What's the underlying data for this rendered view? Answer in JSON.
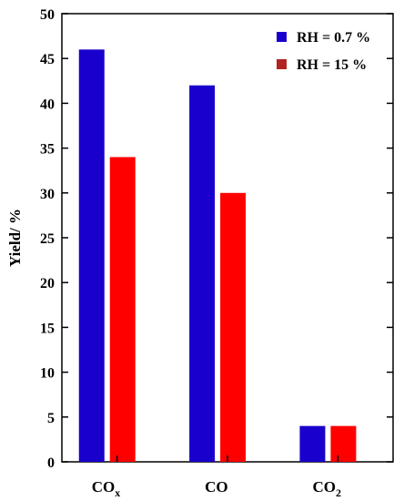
{
  "chart_data": {
    "type": "bar",
    "categories": [
      "CO",
      "CO",
      "CO"
    ],
    "category_subscripts": [
      "x",
      "",
      "2"
    ],
    "series": [
      {
        "name": "RH = 0.7 %",
        "values": [
          46,
          42,
          4
        ],
        "color": "#1a00cc"
      },
      {
        "name": "RH = 15 %",
        "values": [
          34,
          30,
          4
        ],
        "color": "#ff0000",
        "legend_color": "#b22222"
      }
    ],
    "xlabel": "",
    "ylabel": "Yield/ %",
    "ylim": [
      0,
      50
    ],
    "yticks": [
      0,
      5,
      10,
      15,
      20,
      25,
      30,
      35,
      40,
      45,
      50
    ],
    "grid": false,
    "legend_position": "top-right"
  }
}
